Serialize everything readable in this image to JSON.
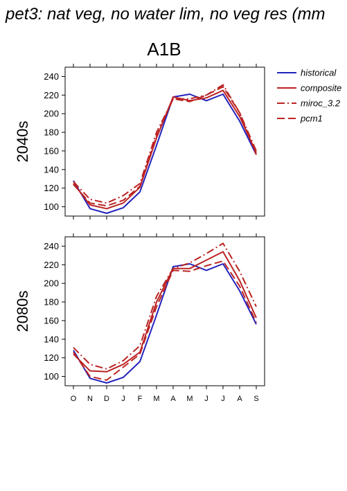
{
  "title": "pet3: nat veg, no water lim, no veg res (mm",
  "scenario": "A1B",
  "colors": {
    "historical": "#2222bb",
    "composite": "#bb2222",
    "miroc_3.2": "#bb2222",
    "pcm1": "#bb2222"
  },
  "chart_data": {
    "type": "line",
    "categories": [
      "O",
      "N",
      "D",
      "J",
      "F",
      "M",
      "A",
      "M",
      "J",
      "J",
      "A",
      "S"
    ],
    "ylim": [
      90,
      250
    ],
    "yticks": [
      100,
      120,
      140,
      160,
      180,
      200,
      220,
      240
    ],
    "legend_placement": "top-right",
    "legend": [
      "historical",
      "composite",
      "miroc_3.2",
      "pcm1"
    ],
    "panels": [
      {
        "label": "2040s",
        "series": [
          {
            "name": "historical",
            "style": "solid",
            "values": [
              128,
              98,
              93,
              99,
              116,
              166,
              218,
              221,
              214,
              221,
              192,
              156
            ]
          },
          {
            "name": "composite",
            "style": "solid",
            "values": [
              125,
              102,
              98,
              104,
              121,
              174,
              218,
              214,
              217,
              225,
              197,
              158
            ]
          },
          {
            "name": "miroc_3.2",
            "style": "dashdot",
            "values": [
              127,
              108,
              104,
              112,
              125,
              180,
              216,
              216,
              220,
              231,
              201,
              160
            ]
          },
          {
            "name": "pcm1",
            "style": "dashed",
            "values": [
              124,
              104,
              101,
              107,
              122,
              176,
              216,
              213,
              220,
              229,
              201,
              156
            ]
          }
        ]
      },
      {
        "label": "2080s",
        "series": [
          {
            "name": "historical",
            "style": "solid",
            "values": [
              128,
              98,
              93,
              99,
              116,
              166,
              218,
              221,
              214,
              221,
              192,
              156
            ]
          },
          {
            "name": "composite",
            "style": "solid",
            "values": [
              124,
              106,
              105,
              113,
              126,
              180,
              216,
              216,
              225,
              234,
              203,
              163
            ]
          },
          {
            "name": "miroc_3.2",
            "style": "dashdot",
            "values": [
              131,
              113,
              108,
              117,
              133,
              186,
              216,
              222,
              232,
              243,
              213,
              175
            ]
          },
          {
            "name": "pcm1",
            "style": "dashed",
            "values": [
              126,
              100,
              96,
              110,
              124,
              175,
              214,
              213,
              219,
              224,
              197,
              158
            ]
          }
        ]
      }
    ]
  }
}
